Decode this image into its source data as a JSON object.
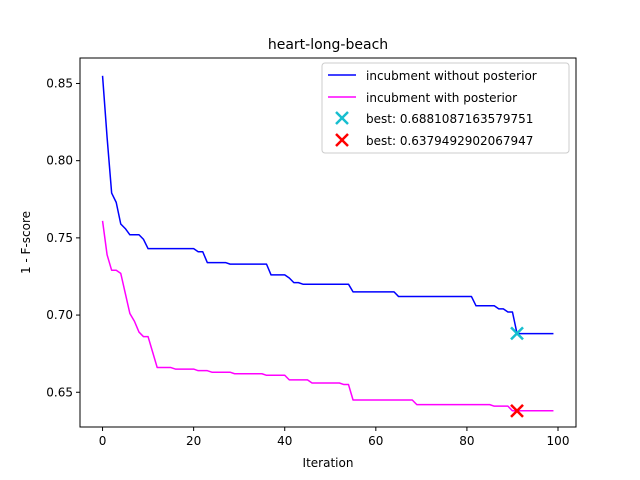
{
  "chart_data": {
    "type": "line",
    "title": "heart-long-beach",
    "xlabel": "Iteration",
    "ylabel": "1 - F-score",
    "xlim": [
      -4.95,
      103.95
    ],
    "ylim": [
      0.6275,
      0.8665
    ],
    "xticks": [
      0,
      20,
      40,
      60,
      80,
      100
    ],
    "yticks": [
      0.65,
      0.7,
      0.75,
      0.8,
      0.85
    ],
    "ytick_labels": [
      "0.65",
      "0.70",
      "0.75",
      "0.80",
      "0.85"
    ],
    "grid": false,
    "legend_position": "top-right",
    "series": [
      {
        "name": "incubment without posterior",
        "color": "#0000ff",
        "x": [
          0,
          1,
          2,
          3,
          4,
          5,
          6,
          7,
          8,
          9,
          10,
          11,
          20,
          21,
          22,
          23,
          24,
          25,
          26,
          27,
          28,
          29,
          30,
          31,
          32,
          33,
          34,
          35,
          36,
          37,
          38,
          39,
          40,
          41,
          42,
          43,
          44,
          45,
          54,
          55,
          64,
          65,
          81,
          82,
          86,
          87,
          88,
          89,
          90,
          91,
          99
        ],
        "y": [
          0.855,
          0.815,
          0.779,
          0.773,
          0.759,
          0.756,
          0.752,
          0.752,
          0.752,
          0.749,
          0.743,
          0.743,
          0.743,
          0.741,
          0.741,
          0.734,
          0.734,
          0.734,
          0.734,
          0.734,
          0.733,
          0.733,
          0.733,
          0.733,
          0.733,
          0.733,
          0.733,
          0.733,
          0.733,
          0.726,
          0.726,
          0.726,
          0.726,
          0.724,
          0.721,
          0.721,
          0.72,
          0.72,
          0.72,
          0.715,
          0.715,
          0.712,
          0.712,
          0.706,
          0.706,
          0.704,
          0.704,
          0.702,
          0.702,
          0.688,
          0.688
        ]
      },
      {
        "name": "incubment with posterior",
        "color": "#ff00ff",
        "x": [
          0,
          1,
          2,
          3,
          4,
          5,
          6,
          7,
          8,
          9,
          10,
          11,
          12,
          15,
          16,
          20,
          21,
          23,
          24,
          28,
          29,
          35,
          36,
          40,
          41,
          45,
          46,
          52,
          53,
          54,
          55,
          68,
          69,
          85,
          86,
          89,
          90,
          99
        ],
        "y": [
          0.761,
          0.739,
          0.729,
          0.729,
          0.727,
          0.714,
          0.701,
          0.696,
          0.689,
          0.686,
          0.686,
          0.676,
          0.666,
          0.666,
          0.665,
          0.665,
          0.664,
          0.664,
          0.663,
          0.663,
          0.662,
          0.662,
          0.661,
          0.661,
          0.658,
          0.658,
          0.656,
          0.656,
          0.655,
          0.655,
          0.645,
          0.645,
          0.642,
          0.642,
          0.641,
          0.641,
          0.638,
          0.638
        ]
      }
    ],
    "markers": [
      {
        "name": "best: 0.6881087163579751",
        "x": 91,
        "y": 0.6881087163579751,
        "color": "#17becf",
        "symbol": "x"
      },
      {
        "name": "best: 0.6379492902067947",
        "x": 91,
        "y": 0.6379492902067947,
        "color": "#ff0000",
        "symbol": "x"
      }
    ]
  }
}
